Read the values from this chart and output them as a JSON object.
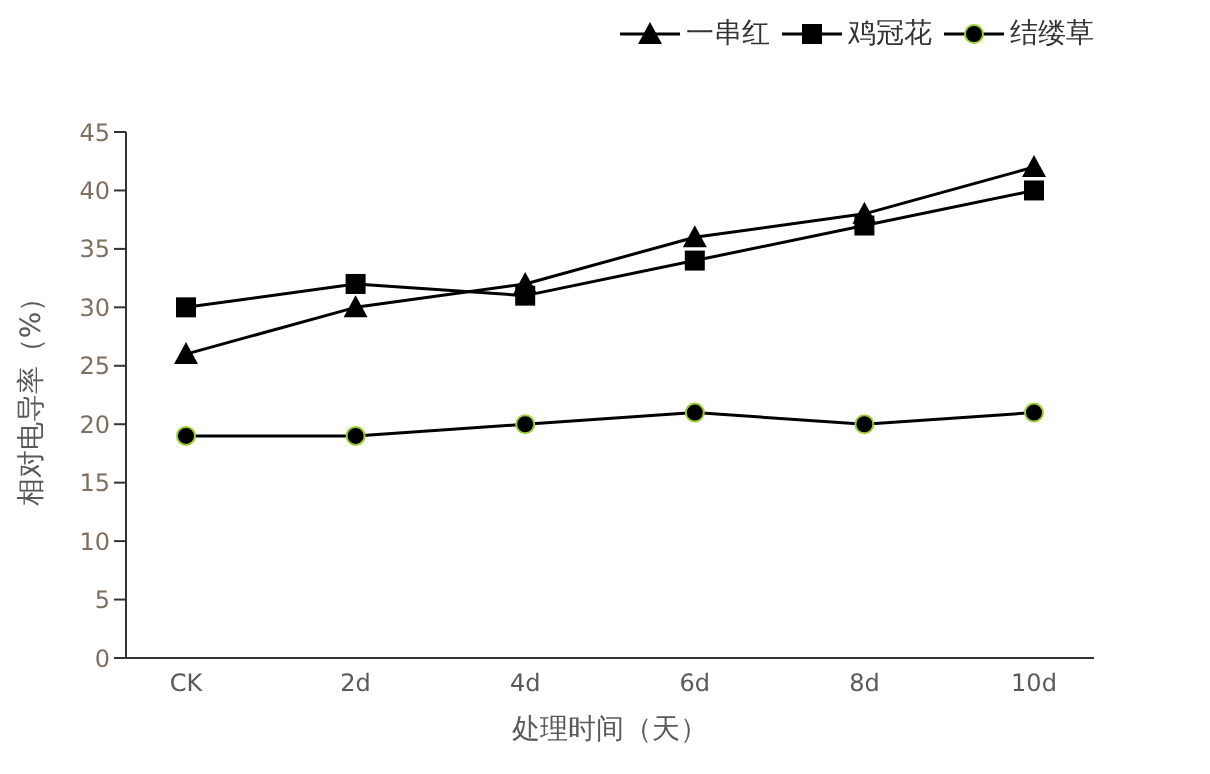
{
  "chart_data": {
    "type": "line",
    "xlabel": "处理时间（天）",
    "ylabel": "相对电导率（%）",
    "categories": [
      "CK",
      "2d",
      "4d",
      "6d",
      "8d",
      "10d"
    ],
    "series": [
      {
        "name": "一串红",
        "color": "#000000",
        "marker": "triangle",
        "values": [
          26,
          30,
          32,
          36,
          38,
          42
        ]
      },
      {
        "name": "鸡冠花",
        "color": "#000000",
        "marker": "square",
        "values": [
          30,
          32,
          31,
          34,
          37,
          40
        ]
      },
      {
        "name": "结缕草",
        "color": "#000000",
        "marker": "circle",
        "values": [
          19,
          19,
          20,
          21,
          20,
          21
        ]
      }
    ],
    "ylim": [
      0,
      45
    ],
    "yticks": [
      0,
      5,
      10,
      15,
      20,
      25,
      30,
      35,
      40,
      45
    ],
    "grid": false,
    "legend": "top right",
    "line_style": "solid"
  }
}
